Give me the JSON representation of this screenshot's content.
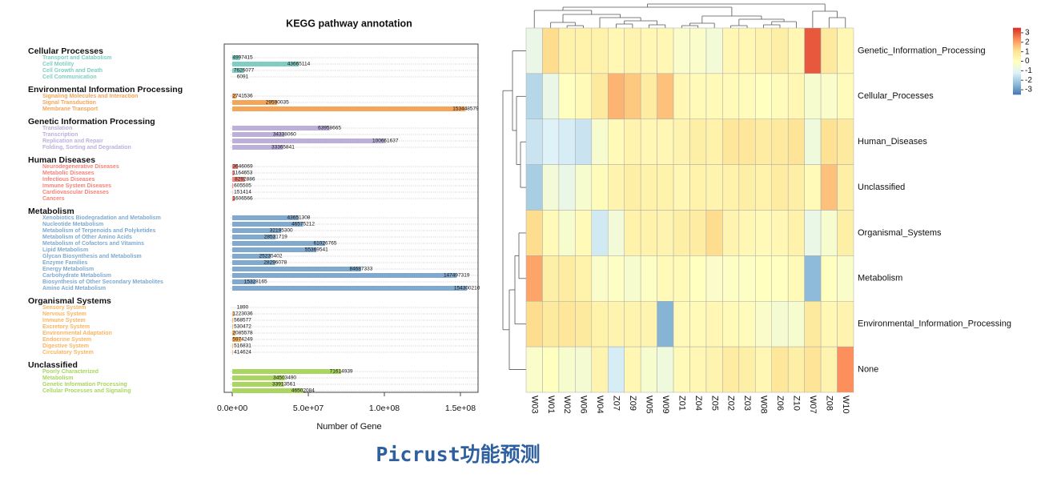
{
  "chart_data": [
    {
      "type": "bar",
      "orientation": "horizontal",
      "title": "KEGG pathway annotation",
      "xlabel": "Number of Gene",
      "xlim": [
        -5300000,
        161600000
      ],
      "xticks": [
        {
          "value": 0,
          "label": "0.0e+00"
        },
        {
          "value": 50000000,
          "label": "5.0e+07"
        },
        {
          "value": 100000000,
          "label": "1.0e+08"
        },
        {
          "value": 150000000,
          "label": "1.5e+08"
        }
      ],
      "groups": [
        {
          "name": "Cellular Processes",
          "color": "#7fcdc4",
          "categories": [
            "Transport and Catabolism",
            "Cell Motility",
            "Cell Growth and Death",
            "Cell Communication"
          ],
          "values": [
            4997415,
            43665114,
            7626077,
            6091
          ]
        },
        {
          "name": "Environmental Information Processing",
          "color": "#f5a55a",
          "categories": [
            "Signaling Molecules and Interaction",
            "Signal Transduction",
            "Membrane Transport"
          ],
          "values": [
            2741536,
            29590035,
            153448579
          ]
        },
        {
          "name": "Genetic Information Processing",
          "color": "#bcb0db",
          "categories": [
            "Translation",
            "Transcription",
            "Replication and Repair",
            "Folding, Sorting and Degradation"
          ],
          "values": [
            63958665,
            34338060,
            100661637,
            33365841
          ]
        },
        {
          "name": "Human Diseases",
          "color": "#f4837a",
          "categories": [
            "Neurodegenerative Diseases",
            "Metabolic Diseases",
            "Infectious Diseases",
            "Immune System Diseases",
            "Cardiovascular Diseases",
            "Cancers"
          ],
          "values": [
            3646069,
            1164653,
            8292886,
            605505,
            151414,
            1606566
          ]
        },
        {
          "name": "Metabolism",
          "color": "#7fa9cf",
          "categories": [
            "Xenobiotics Biodegradation and Metabolism",
            "Nucleotide Metabolism",
            "Metabolism of Terpenoids and Polyketides",
            "Metabolism of Other Amino Acids",
            "Metabolism of Cofactors and Vitamins",
            "Lipid Metabolism",
            "Glycan Biosynthesis and Metabolism",
            "Enzyme Families",
            "Energy Metabolism",
            "Carbohydrate Metabolism",
            "Biosynthesis of Other Secondary Metabolites",
            "Amino Acid Metabolism"
          ],
          "values": [
            43651308,
            46575212,
            32195300,
            28531719,
            61026765,
            55369541,
            25235402,
            28296078,
            84687333,
            147497319,
            15328165,
            154300210
          ]
        },
        {
          "name": "Organismal Systems",
          "color": "#fbb461",
          "categories": [
            "Sensory System",
            "Nervous System",
            "Immune System",
            "Excretory System",
            "Environmental Adaptation",
            "Endocrine System",
            "Digestive System",
            "Circulatory System"
          ],
          "values": [
            1890,
            1223036,
            568577,
            530472,
            2085578,
            5974249,
            516831,
            414624
          ]
        },
        {
          "name": "Unclassified",
          "color": "#a9d560",
          "categories": [
            "Poorly Characterized",
            "Metabolism",
            "Genetic Information Processing",
            "Cellular Processes and Signaling"
          ],
          "values": [
            71614939,
            34503490,
            33913561,
            46502084
          ]
        }
      ]
    },
    {
      "type": "heatmap",
      "columns": [
        "W03",
        "W01",
        "W02",
        "W06",
        "W04",
        "Z07",
        "Z09",
        "W05",
        "W09",
        "Z01",
        "Z04",
        "Z05",
        "Z02",
        "Z03",
        "W08",
        "Z06",
        "Z10",
        "W07",
        "Z08",
        "W10"
      ],
      "rows": [
        "Genetic_Information_Processing",
        "Cellular_Processes",
        "Human_Diseases",
        "Unclassified",
        "Organismal_Systems",
        "Metabolism",
        "Environmental_Information_Processing",
        "None"
      ],
      "values": [
        [
          -0.8,
          1.2,
          0.5,
          0.5,
          0.5,
          0.3,
          0.4,
          0.3,
          0.3,
          -0.2,
          -0.2,
          -0.5,
          0.3,
          0.3,
          0.4,
          0.6,
          0.3,
          3.0,
          0.8,
          0.3
        ],
        [
          -1.8,
          -0.8,
          0,
          0.2,
          0.8,
          1.8,
          1.5,
          0.7,
          1.6,
          0.3,
          0.2,
          0.2,
          0.2,
          0.1,
          0,
          0.1,
          0.3,
          -0.3,
          -0.2,
          0.1
        ],
        [
          -1.5,
          -1.2,
          -1.3,
          -1.5,
          -0.3,
          0.2,
          0.4,
          0.3,
          0.3,
          0.4,
          0.6,
          0.5,
          0.9,
          0.9,
          0.7,
          0.8,
          1.0,
          -0.6,
          1.1,
          0.8
        ],
        [
          -2.0,
          -0.5,
          -0.8,
          -0.3,
          0.1,
          0.4,
          0.6,
          0.5,
          0.5,
          0.3,
          0.5,
          0.4,
          0.5,
          0.6,
          0.5,
          0.7,
          0.6,
          0.2,
          1.6,
          0.6
        ],
        [
          1.2,
          0.2,
          -0.3,
          0.2,
          -1.4,
          -0.5,
          0.5,
          0.5,
          0.4,
          0.6,
          0.7,
          1.2,
          0.4,
          0.3,
          0.2,
          0.3,
          0.5,
          -0.8,
          -0.3,
          0.6
        ],
        [
          2.0,
          0.6,
          0.7,
          0.5,
          -0.2,
          -0.1,
          -0.3,
          -0.1,
          0.2,
          0.2,
          0,
          -0.2,
          -0.1,
          -0.1,
          0,
          0,
          0.2,
          -2.4,
          0,
          -0.2
        ],
        [
          1.2,
          0.8,
          0.9,
          0.8,
          0.5,
          0.4,
          0.4,
          0.4,
          -2.5,
          0.2,
          0.2,
          0.3,
          0.2,
          0.1,
          -0.2,
          -0.4,
          -0.3,
          0.8,
          0.3,
          0.4
        ],
        [
          -0.2,
          0,
          -0.3,
          -0.4,
          0.4,
          -1.3,
          0.3,
          -0.3,
          -0.6,
          0.2,
          0.3,
          0.4,
          0.7,
          0.6,
          0.3,
          0.9,
          0.6,
          1.0,
          0.4,
          2.3
        ]
      ],
      "zlim": [
        -3.5,
        3.5
      ],
      "zticks": [
        3,
        2,
        1,
        0,
        -1,
        -2,
        -3
      ],
      "colormap": [
        "#4575b4",
        "#91bfdb",
        "#e0f3f8",
        "#ffffbf",
        "#fee090",
        "#fc8d59",
        "#d73027"
      ]
    }
  ],
  "caption": "Picrust功能预测"
}
